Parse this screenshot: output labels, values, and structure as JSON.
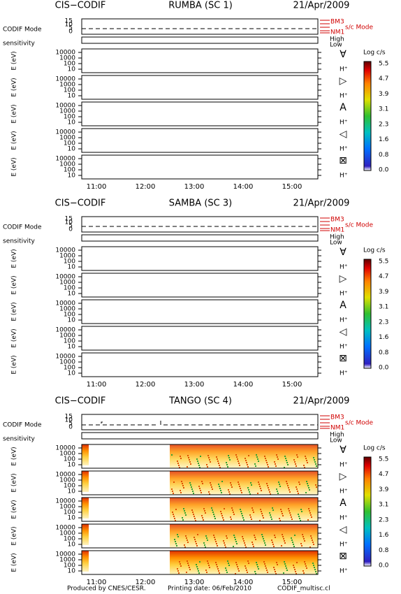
{
  "panels": [
    {
      "instrument": "CIS−CODIF",
      "spacecraft": "RUMBA (SC 1)",
      "date": "21/Apr/2009"
    },
    {
      "instrument": "CIS−CODIF",
      "spacecraft": "SAMBA (SC 3)",
      "date": "21/Apr/2009"
    },
    {
      "instrument": "CIS−CODIF",
      "spacecraft": "TANGO (SC 4)",
      "date": "21/Apr/2009"
    }
  ],
  "mode_label": "CODIF Mode",
  "mode_ticks": [
    "15",
    "10",
    "5",
    "0"
  ],
  "sc_mode": {
    "label": "s/c Mode",
    "top": "BM3",
    "bottom": "NM1"
  },
  "sensitivity": {
    "label": "sensitivity",
    "high": "High",
    "low": "Low"
  },
  "energy_axis": {
    "label": "E (eV)",
    "ticks": [
      "10000",
      "1000",
      "100",
      "10"
    ]
  },
  "species": [
    {
      "symbol": "∀",
      "ion": "H⁺"
    },
    {
      "symbol": "▷",
      "ion": "H⁺"
    },
    {
      "symbol": "A",
      "ion": "H⁺"
    },
    {
      "symbol": "◁",
      "ion": "H⁺"
    },
    {
      "symbol": "⊠",
      "ion": "H⁺"
    }
  ],
  "colorbar": {
    "title": "Log c/s",
    "ticks": [
      "5.5",
      "4.7",
      "3.9",
      "3.1",
      "2.3",
      "1.6",
      "0.8",
      "0.0"
    ]
  },
  "time_ticks": [
    "11:00",
    "12:00",
    "13:00",
    "14:00",
    "15:00"
  ],
  "footer": [
    "Produced by CNES/CESR.",
    "Printing date: 06/Feb/2010",
    "CODIF_multisc.cl"
  ]
}
